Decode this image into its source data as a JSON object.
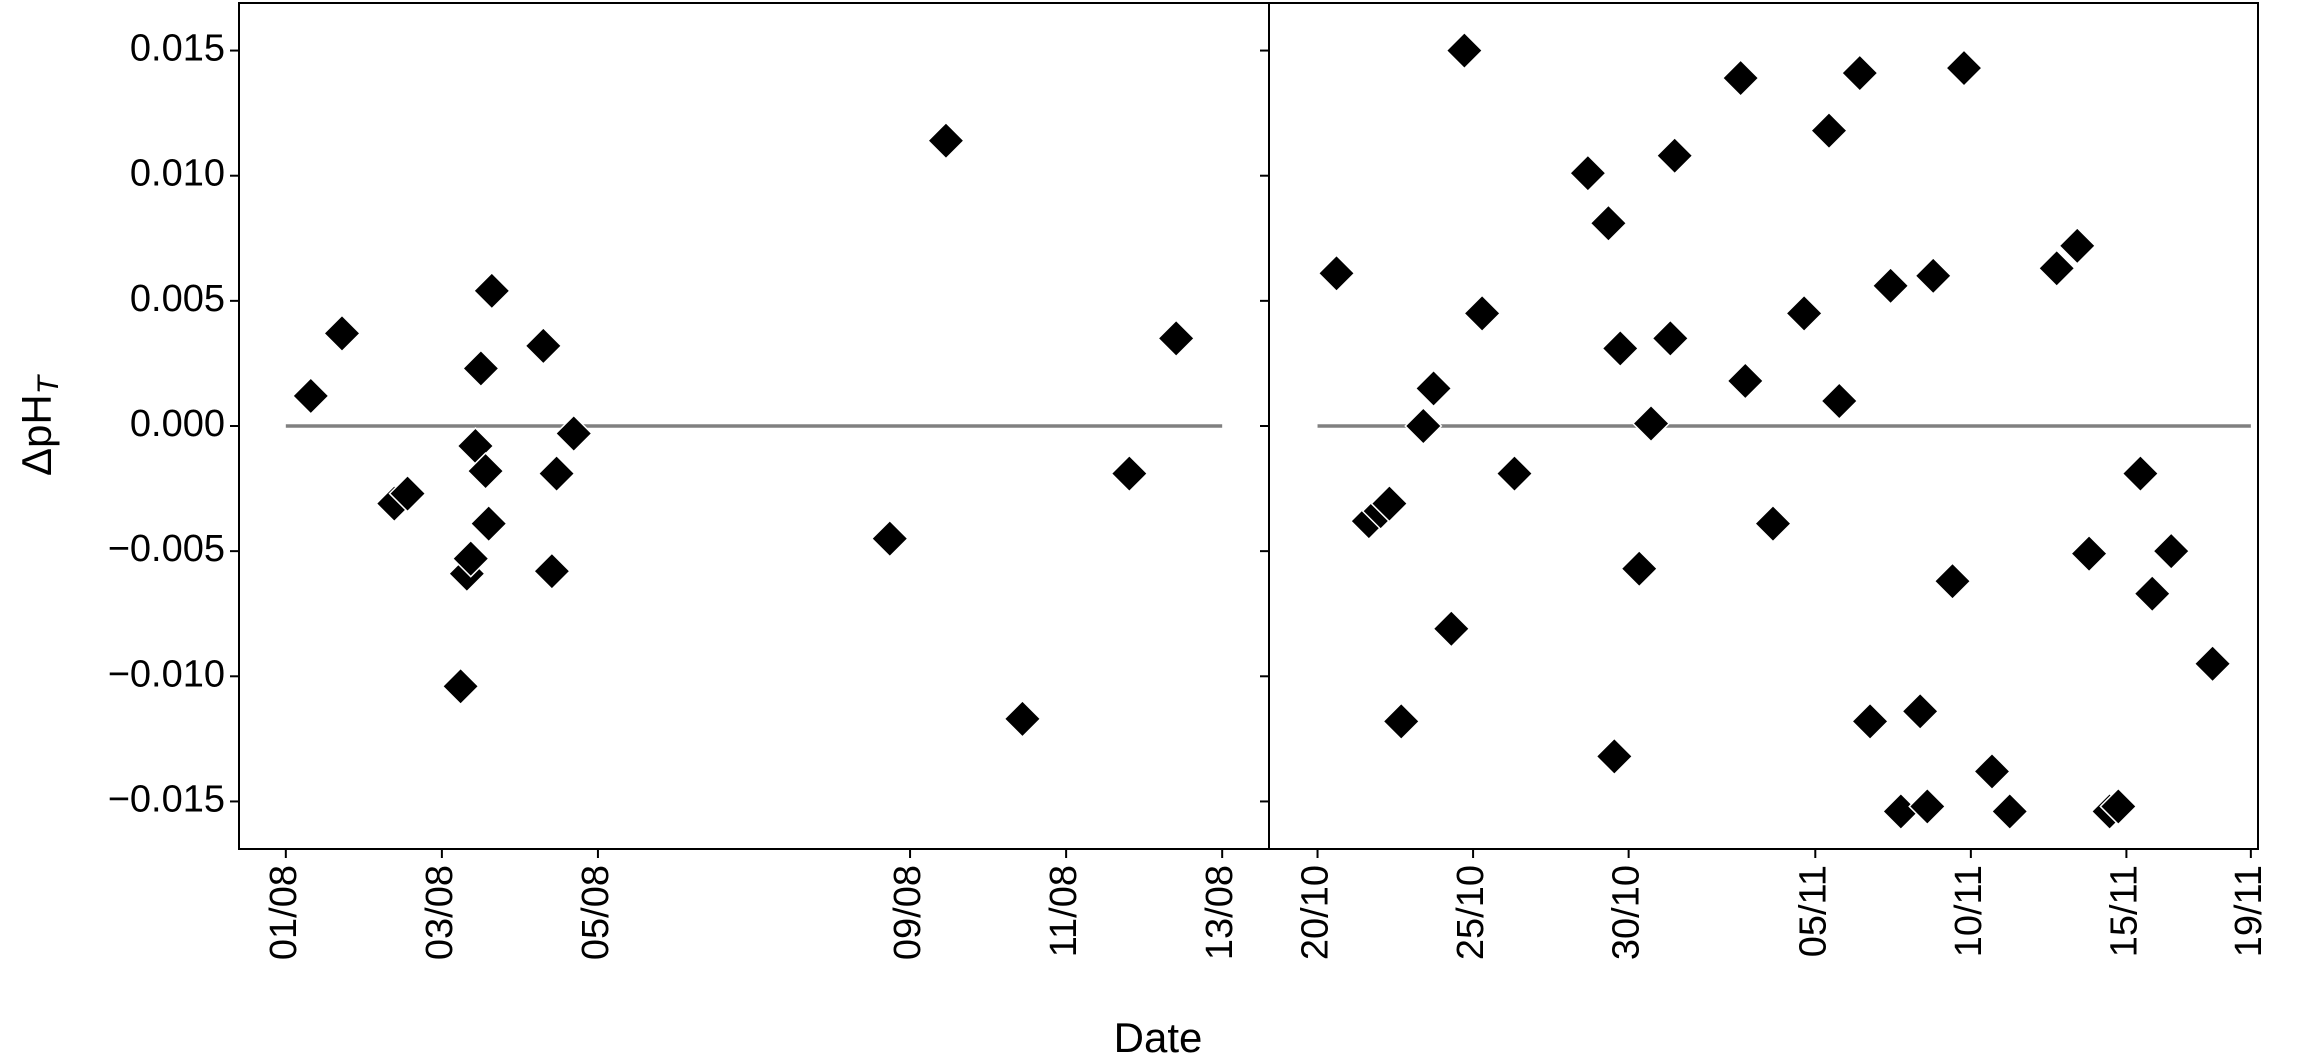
{
  "x_label": "Date",
  "chart_data": [
    {
      "type": "scatter",
      "y_label": "ΔpH",
      "y_label_subscript": "T",
      "color": "#000000",
      "reference_line": 0,
      "reference_color": "#808080",
      "xlim": [
        212.4,
        225.6
      ],
      "xticks": [
        {
          "value": 213,
          "label": "01/08"
        },
        {
          "value": 215,
          "label": "03/08"
        },
        {
          "value": 217,
          "label": "05/08"
        },
        {
          "value": 221,
          "label": "09/08"
        },
        {
          "value": 223,
          "label": "11/08"
        },
        {
          "value": 225,
          "label": "13/08"
        }
      ],
      "ylim": [
        -0.0169,
        0.0169
      ],
      "yticks": [
        {
          "value": -0.015,
          "label": "−0.015"
        },
        {
          "value": -0.01,
          "label": "−0.010"
        },
        {
          "value": -0.005,
          "label": "−0.005"
        },
        {
          "value": 0,
          "label": "0.000"
        },
        0.005,
        {
          "value": 0.01,
          "label": "0.010"
        },
        0.015
      ],
      "x": [
        213.32,
        213.72,
        214.39,
        214.56,
        215.24,
        215.32,
        215.37,
        215.43,
        215.5,
        215.56,
        215.6,
        215.64,
        216.3,
        216.41,
        216.47,
        216.69,
        220.74,
        221.46,
        222.44,
        223.81,
        224.41
      ],
      "values": [
        0.0012,
        0.0037,
        -0.0031,
        -0.0027,
        -0.0104,
        -0.0059,
        -0.0053,
        -0.0008,
        0.0023,
        -0.0018,
        -0.0039,
        0.0054,
        0.0032,
        -0.0058,
        -0.0019,
        -0.0003,
        -0.0045,
        0.0114,
        -0.0117,
        -0.0019,
        0.0035
      ]
    },
    {
      "type": "scatter",
      "color": "#000000",
      "reference_line": 0,
      "reference_color": "#808080",
      "xlim": [
        291.44,
        323.23
      ],
      "xticks": [
        {
          "value": 293,
          "label": "20/10"
        },
        {
          "value": 298,
          "label": "25/10"
        },
        {
          "value": 303,
          "label": "30/10"
        },
        {
          "value": 309,
          "label": "05/11"
        },
        {
          "value": 314,
          "label": "10/11"
        },
        {
          "value": 319,
          "label": "15/11"
        },
        {
          "value": 323,
          "label": "19/11"
        }
      ],
      "ylim": [
        -0.0169,
        0.0169
      ],
      "yticks": [
        -0.015,
        -0.01,
        -0.005,
        0,
        0.005,
        0.01,
        0.015
      ],
      "x": [
        293.61,
        294.65,
        295.03,
        295.31,
        295.69,
        296.4,
        296.73,
        297.3,
        297.72,
        298.29,
        299.33,
        301.69,
        302.35,
        302.54,
        302.73,
        303.34,
        303.72,
        304.34,
        304.48,
        306.6,
        306.75,
        307.64,
        308.64,
        309.44,
        309.77,
        310.43,
        310.76,
        311.42,
        311.75,
        312.37,
        312.6,
        312.79,
        313.41,
        313.78,
        314.68,
        315.25,
        316.76,
        317.42,
        317.8,
        318.46,
        318.74,
        319.45,
        319.83,
        320.44,
        321.77
      ],
      "values": [
        0.0061,
        -0.0038,
        -0.0034,
        -0.0031,
        -0.0118,
        0.0,
        0.0015,
        -0.0081,
        0.015,
        0.0045,
        -0.0019,
        0.0101,
        0.0081,
        -0.0132,
        0.0031,
        -0.0057,
        0.0001,
        0.0035,
        0.0108,
        0.0139,
        0.0018,
        -0.0039,
        0.0045,
        0.0118,
        0.001,
        0.0141,
        -0.0118,
        0.0056,
        -0.0154,
        -0.0114,
        -0.0152,
        0.006,
        -0.0062,
        0.0143,
        -0.0138,
        -0.0154,
        0.0063,
        0.0072,
        -0.0051,
        -0.0154,
        -0.0152,
        -0.0019,
        -0.0067,
        -0.005,
        -0.0095
      ]
    }
  ]
}
